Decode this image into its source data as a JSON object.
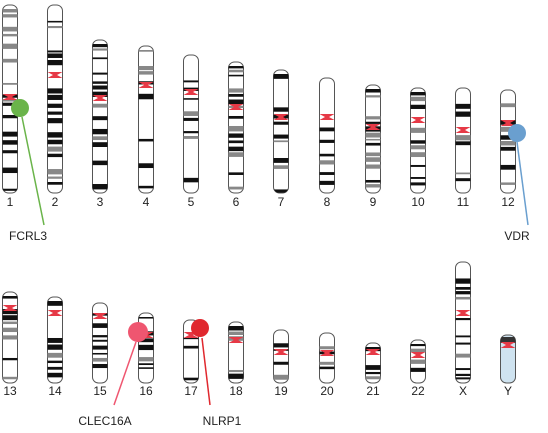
{
  "chromosomes": [
    "1",
    "2",
    "3",
    "4",
    "5",
    "6",
    "7",
    "8",
    "9",
    "10",
    "11",
    "12",
    "13",
    "14",
    "15",
    "16",
    "17",
    "18",
    "19",
    "20",
    "21",
    "22",
    "X",
    "Y"
  ],
  "genes": [
    "FCRL3",
    "VDR",
    "CLEC16A",
    "NLRP1"
  ]
}
